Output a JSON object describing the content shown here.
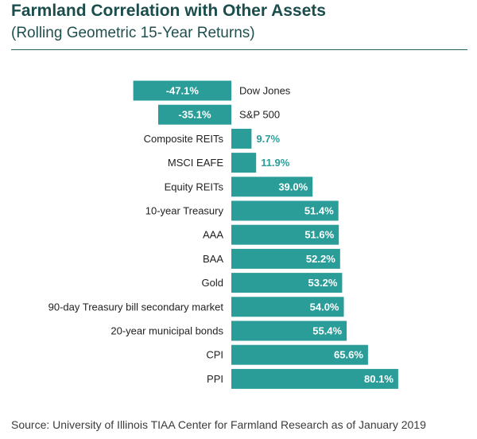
{
  "header": {
    "title": "Farmland Correlation with Other Assets",
    "subtitle": "(Rolling Geometric 15-Year Returns)"
  },
  "footer": {
    "source": "Source: University of Illinois TIAA Center for Farmland Research as of January 2019"
  },
  "colors": {
    "bar": "#2a9d99",
    "label_outside": "#2a9d99",
    "label_inside": "#ffffff",
    "category_text": "#222222"
  },
  "chart_data": {
    "type": "bar",
    "orientation": "horizontal",
    "title": "Farmland Correlation with Other Assets",
    "subtitle": "(Rolling Geometric 15-Year Returns)",
    "xlabel": "",
    "ylabel": "",
    "grid": false,
    "legend": "none",
    "unit": "%",
    "categories": [
      "Dow Jones",
      "S&P 500",
      "Composite REITs",
      "MSCI EAFE",
      "Equity REITs",
      "10-year Treasury",
      "AAA",
      "BAA",
      "Gold",
      "90-day Treasury bill secondary market",
      "20-year municipal bonds",
      "CPI",
      "PPI"
    ],
    "values": [
      -47.1,
      -35.1,
      9.7,
      11.9,
      39.0,
      51.4,
      51.6,
      52.2,
      53.2,
      54.0,
      55.4,
      65.6,
      80.1
    ],
    "labels": [
      "-47.1%",
      "-35.1%",
      "9.7%",
      "11.9%",
      "39.0%",
      "51.4%",
      "51.6%",
      "52.2%",
      "53.2%",
      "54.0%",
      "55.4%",
      "65.6%",
      "80.1%"
    ]
  }
}
